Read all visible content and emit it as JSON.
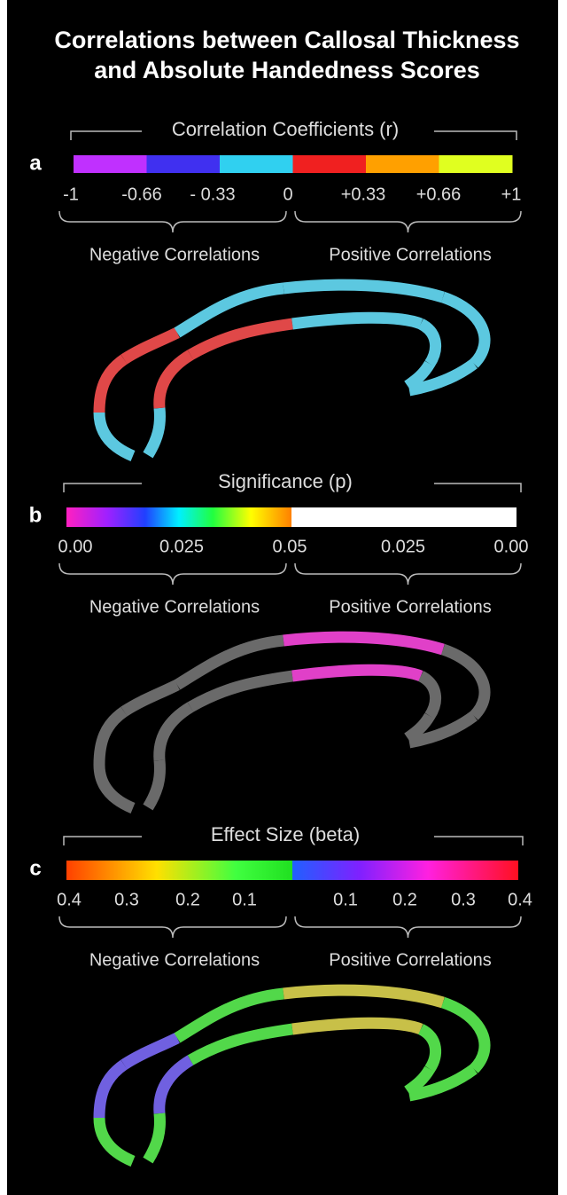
{
  "title_lines": [
    "Correlations between Callosal Thickness",
    "and Absolute Handedness Scores"
  ],
  "panels": [
    {
      "letter": "a",
      "scale_title": "Correlation Coefficients (r)",
      "tick_labels": [
        "-1",
        "-0.66",
        "- 0.33",
        "0",
        "+0.33",
        "+0.66",
        "+1"
      ],
      "left_label": "Negative Correlations",
      "right_label": "Positive Correlations"
    },
    {
      "letter": "b",
      "scale_title": "Significance (p)",
      "tick_labels": [
        "0.00",
        "0.025",
        "0.05",
        "0.025",
        "0.00"
      ],
      "left_label": "Negative Correlations",
      "right_label": "Positive Correlations"
    },
    {
      "letter": "c",
      "scale_title": "Effect Size (beta)",
      "tick_labels": [
        "0.4",
        "0.3",
        "0.2",
        "0.1",
        "0.1",
        "0.2",
        "0.3",
        "0.4"
      ],
      "left_label": "Negative Correlations",
      "right_label": "Positive Correlations"
    }
  ]
}
